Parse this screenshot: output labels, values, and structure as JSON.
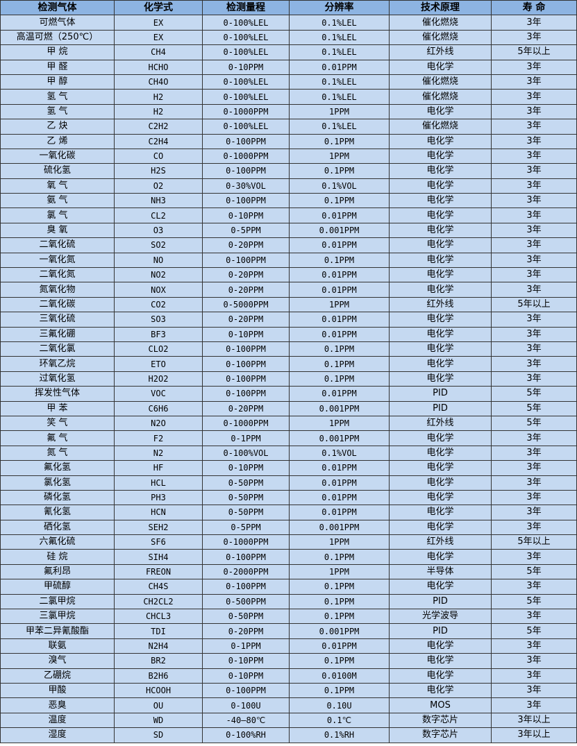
{
  "colors": {
    "header_bg": "#8db4e2",
    "row_bg": "#c5d9f1",
    "border": "#333333"
  },
  "table": {
    "headers": [
      "检测气体",
      "化学式",
      "检测量程",
      "分辨率",
      "技术原理",
      "寿 命"
    ],
    "rows": [
      [
        "可燃气体",
        "EX",
        "0-100%LEL",
        "0.1%LEL",
        "催化燃烧",
        "3年"
      ],
      [
        "高温可燃（250℃）",
        "EX",
        "0-100%LEL",
        "0.1%LEL",
        "催化燃烧",
        "3年"
      ],
      [
        "甲 烷",
        "CH4",
        "0-100%LEL",
        "0.1%LEL",
        "红外线",
        "5年以上"
      ],
      [
        "甲 醛",
        "HCHO",
        "0-10PPM",
        "0.01PPM",
        "电化学",
        "3年"
      ],
      [
        "甲 醇",
        "CH4O",
        "0-100%LEL",
        "0.1%LEL",
        "催化燃烧",
        "3年"
      ],
      [
        "氢 气",
        "H2",
        "0-100%LEL",
        "0.1%LEL",
        "催化燃烧",
        "3年"
      ],
      [
        "氢 气",
        "H2",
        "0-1000PPM",
        "1PPM",
        "电化学",
        "3年"
      ],
      [
        "乙 炔",
        "C2H2",
        "0-100%LEL",
        "0.1%LEL",
        "催化燃烧",
        "3年"
      ],
      [
        "乙 烯",
        "C2H4",
        "0-100PPM",
        "0.1PPM",
        "电化学",
        "3年"
      ],
      [
        "一氧化碳",
        "CO",
        "0-1000PPM",
        "1PPM",
        "电化学",
        "3年"
      ],
      [
        "硫化氢",
        "H2S",
        "0-100PPM",
        "0.1PPM",
        "电化学",
        "3年"
      ],
      [
        "氧 气",
        "O2",
        "0-30%VOL",
        "0.1%VOL",
        "电化学",
        "3年"
      ],
      [
        "氨 气",
        "NH3",
        "0-100PPM",
        "0.1PPM",
        "电化学",
        "3年"
      ],
      [
        "氯 气",
        "CL2",
        "0-10PPM",
        "0.01PPM",
        "电化学",
        "3年"
      ],
      [
        "臭 氧",
        "O3",
        "0-5PPM",
        "0.001PPM",
        "电化学",
        "3年"
      ],
      [
        "二氧化硫",
        "SO2",
        "0-20PPM",
        "0.01PPM",
        "电化学",
        "3年"
      ],
      [
        "一氧化氮",
        "NO",
        "0-100PPM",
        "0.1PPM",
        "电化学",
        "3年"
      ],
      [
        "二氧化氮",
        "NO2",
        "0-20PPM",
        "0.01PPM",
        "电化学",
        "3年"
      ],
      [
        "氮氧化物",
        "NOX",
        "0-20PPM",
        "0.01PPM",
        "电化学",
        "3年"
      ],
      [
        "二氧化碳",
        "CO2",
        "0-5000PPM",
        "1PPM",
        "红外线",
        "5年以上"
      ],
      [
        "三氧化硫",
        "SO3",
        "0-20PPM",
        "0.01PPM",
        "电化学",
        "3年"
      ],
      [
        "三氟化硼",
        "BF3",
        "0-10PPM",
        "0.01PPM",
        "电化学",
        "3年"
      ],
      [
        "二氧化氯",
        "CLO2",
        "0-100PPM",
        "0.1PPM",
        "电化学",
        "3年"
      ],
      [
        "环氧乙烷",
        "ETO",
        "0-100PPM",
        "0.1PPM",
        "电化学",
        "3年"
      ],
      [
        "过氧化氢",
        "H2O2",
        "0-100PPM",
        "0.1PPM",
        "电化学",
        "3年"
      ],
      [
        "挥发性气体",
        "VOC",
        "0-100PPM",
        "0.01PPM",
        "PID",
        "5年"
      ],
      [
        "甲 苯",
        "C6H6",
        "0-20PPM",
        "0.001PPM",
        "PID",
        "5年"
      ],
      [
        "笑 气",
        "N2O",
        "0-1000PPM",
        "1PPM",
        "红外线",
        "5年"
      ],
      [
        "氟 气",
        "F2",
        "0-1PPM",
        "0.001PPM",
        "电化学",
        "3年"
      ],
      [
        "氮 气",
        "N2",
        "0-100%VOL",
        "0.1%VOL",
        "电化学",
        "3年"
      ],
      [
        "氟化氢",
        "HF",
        "0-10PPM",
        "0.01PPM",
        "电化学",
        "3年"
      ],
      [
        "氯化氢",
        "HCL",
        "0-50PPM",
        "0.01PPM",
        "电化学",
        "3年"
      ],
      [
        "磷化氢",
        "PH3",
        "0-50PPM",
        "0.01PPM",
        "电化学",
        "3年"
      ],
      [
        "氰化氢",
        "HCN",
        "0-50PPM",
        "0.01PPM",
        "电化学",
        "3年"
      ],
      [
        "硒化氢",
        "SEH2",
        "0-5PPM",
        "0.001PPM",
        "电化学",
        "3年"
      ],
      [
        "六氟化硫",
        "SF6",
        "0-1000PPM",
        "1PPM",
        "红外线",
        "5年以上"
      ],
      [
        "硅 烷",
        "SIH4",
        "0-100PPM",
        "0.1PPM",
        "电化学",
        "3年"
      ],
      [
        "氟利昂",
        "FREON",
        "0-2000PPM",
        "1PPM",
        "半导体",
        "5年"
      ],
      [
        "甲硫醇",
        "CH4S",
        "0-100PPM",
        "0.1PPM",
        "电化学",
        "3年"
      ],
      [
        "二氯甲烷",
        "CH2CL2",
        "0-500PPM",
        "0.1PPM",
        "PID",
        "5年"
      ],
      [
        "三氯甲烷",
        "CHCL3",
        "0-50PPM",
        "0.1PPM",
        "光学波导",
        "3年"
      ],
      [
        "甲苯二异氰酸酯",
        "TDI",
        "0-20PPM",
        "0.001PPM",
        "PID",
        "5年"
      ],
      [
        "联氨",
        "N2H4",
        "0-1PPM",
        "0.01PPM",
        "电化学",
        "3年"
      ],
      [
        "溴气",
        "BR2",
        "0-10PPM",
        "0.1PPM",
        "电化学",
        "3年"
      ],
      [
        "乙硼烷",
        "B2H6",
        "0-10PPM",
        "0.0100M",
        "电化学",
        "3年"
      ],
      [
        "甲酸",
        "HCOOH",
        "0-100PPM",
        "0.1PPM",
        "电化学",
        "3年"
      ],
      [
        "恶臭",
        "OU",
        "0-100U",
        "0.10U",
        "MOS",
        "3年"
      ],
      [
        "温度",
        "WD",
        "-40—80℃",
        "0.1℃",
        "数字芯片",
        "3年以上"
      ],
      [
        "湿度",
        "SD",
        "0-100%RH",
        "0.1%RH",
        "数字芯片",
        "3年以上"
      ]
    ]
  }
}
